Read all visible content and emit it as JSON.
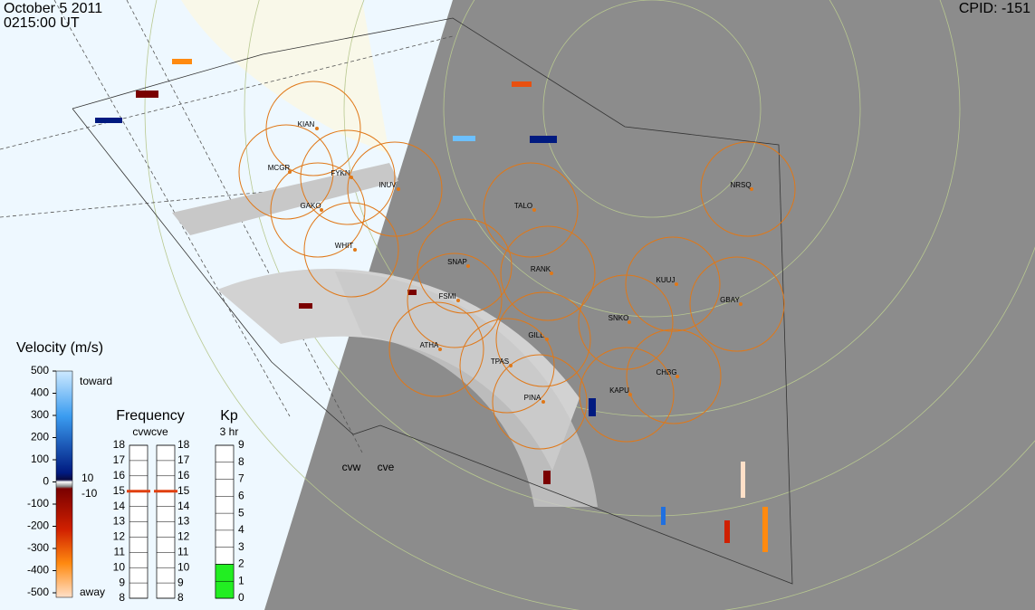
{
  "header": {
    "date": "October 5 2011",
    "time": "0215:00 UT",
    "cpid": "CPID:  -151"
  },
  "stations": [
    "KIAN",
    "MCGR",
    "FYKN",
    "INUV",
    "GAKO",
    "TALO",
    "WHIT",
    "SNAP",
    "RANK",
    "KUUJ",
    "GBAY",
    "FSMI",
    "SNKO",
    "GILL",
    "ATHA",
    "TPAS",
    "CHBG",
    "KAPU",
    "PINA",
    "NRSQ"
  ],
  "radars": [
    "cvw",
    "cve"
  ],
  "velocity_legend": {
    "title": "Velocity (m/s)",
    "ticks": [
      500,
      400,
      300,
      200,
      100,
      0,
      -100,
      -200,
      -300,
      -400,
      -500
    ],
    "toward": "toward",
    "away": "away",
    "deadband": [
      10,
      -10
    ]
  },
  "frequency_legend": {
    "title": "Frequency",
    "subtitle": "cvwcve",
    "ticks": [
      18,
      17,
      16,
      15,
      14,
      13,
      12,
      11,
      10,
      9,
      8
    ],
    "values": [
      15,
      15
    ]
  },
  "kp_legend": {
    "title": "Kp",
    "subtitle": "3 hr",
    "ticks": [
      9,
      8,
      7,
      6,
      5,
      4,
      3,
      2,
      1,
      0
    ],
    "value": 2
  }
}
